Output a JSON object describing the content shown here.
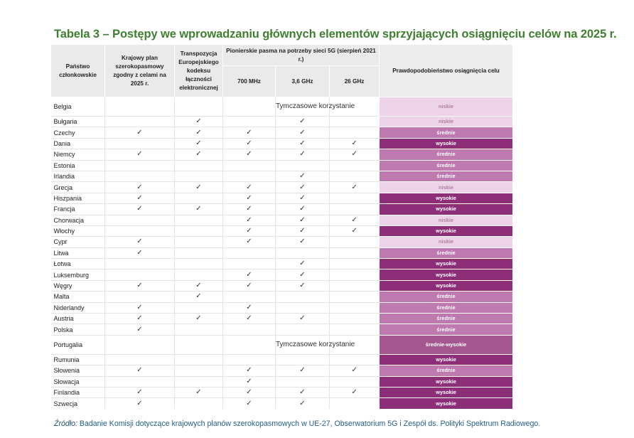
{
  "title": "Tabela 3 – Postępy we wprowadzaniu głównych elementów sprzyjających osiągnięciu celów na 2025 r.",
  "headers": {
    "state": "Państwo członkowskie",
    "plan": "Krajowy plan szerokopasmowy zgodny z celami na 2025 r.",
    "transposition": "Transpozycja Europejskiego kodeksu łączności elektronicznej",
    "bands_group": "Pionierskie pasma na potrzeby sieci 5G (sierpień 2021 r.)",
    "b700": "700 MHz",
    "b36": "3,6 GHz",
    "b26": "26 GHz",
    "probability": "Prawdopodobieństwo osiągnięcia celu"
  },
  "check_glyph": "✓",
  "level_colors": {
    "niskie": "#ecd3e7",
    "średnie": "#bf79b1",
    "wysokie": "#8c2f78",
    "średnie-wysokie": "#a4578f"
  },
  "rows": [
    {
      "name": "Belgia",
      "plan": "",
      "trans": "",
      "b700": "",
      "b36": "Tymczasowe korzystanie",
      "b26": "",
      "level": "niskie",
      "cls": "niskie",
      "tall": true
    },
    {
      "name": "Bułgaria",
      "plan": "",
      "trans": "✓",
      "b700": "",
      "b36": "✓",
      "b26": "",
      "level": "niskie",
      "cls": "niskie"
    },
    {
      "name": "Czechy",
      "plan": "✓",
      "trans": "✓",
      "b700": "✓",
      "b36": "✓",
      "b26": "",
      "level": "średnie",
      "cls": "srednie"
    },
    {
      "name": "Dania",
      "plan": "",
      "trans": "✓",
      "b700": "✓",
      "b36": "✓",
      "b26": "✓",
      "level": "wysokie",
      "cls": "wysokie"
    },
    {
      "name": "Niemcy",
      "plan": "✓",
      "trans": "✓",
      "b700": "✓",
      "b36": "✓",
      "b26": "✓",
      "level": "średnie",
      "cls": "srednie"
    },
    {
      "name": "Estonia",
      "plan": "",
      "trans": "",
      "b700": "",
      "b36": "",
      "b26": "",
      "level": "średnie",
      "cls": "srednie"
    },
    {
      "name": "Irlandia",
      "plan": "",
      "trans": "",
      "b700": "",
      "b36": "✓",
      "b26": "",
      "level": "średnie",
      "cls": "srednie"
    },
    {
      "name": "Grecja",
      "plan": "✓",
      "trans": "✓",
      "b700": "✓",
      "b36": "✓",
      "b26": "✓",
      "level": "niskie",
      "cls": "niskie"
    },
    {
      "name": "Hiszpania",
      "plan": "✓",
      "trans": "",
      "b700": "✓",
      "b36": "✓",
      "b26": "",
      "level": "wysokie",
      "cls": "wysokie"
    },
    {
      "name": "Francja",
      "plan": "✓",
      "trans": "✓",
      "b700": "✓",
      "b36": "✓",
      "b26": "",
      "level": "wysokie",
      "cls": "wysokie"
    },
    {
      "name": "Chorwacja",
      "plan": "",
      "trans": "",
      "b700": "✓",
      "b36": "✓",
      "b26": "✓",
      "level": "niskie",
      "cls": "niskie"
    },
    {
      "name": "Włochy",
      "plan": "",
      "trans": "",
      "b700": "✓",
      "b36": "✓",
      "b26": "✓",
      "level": "wysokie",
      "cls": "wysokie"
    },
    {
      "name": "Cypr",
      "plan": "✓",
      "trans": "",
      "b700": "✓",
      "b36": "✓",
      "b26": "",
      "level": "niskie",
      "cls": "niskie"
    },
    {
      "name": "Litwa",
      "plan": "✓",
      "trans": "",
      "b700": "",
      "b36": "",
      "b26": "",
      "level": "średnie",
      "cls": "srednie"
    },
    {
      "name": "Łotwa",
      "plan": "",
      "trans": "",
      "b700": "",
      "b36": "✓",
      "b26": "",
      "level": "wysokie",
      "cls": "wysokie"
    },
    {
      "name": "Luksemburg",
      "plan": "",
      "trans": "",
      "b700": "✓",
      "b36": "✓",
      "b26": "",
      "level": "wysokie",
      "cls": "wysokie"
    },
    {
      "name": "Węgry",
      "plan": "✓",
      "trans": "✓",
      "b700": "✓",
      "b36": "✓",
      "b26": "",
      "level": "wysokie",
      "cls": "wysokie"
    },
    {
      "name": "Malta",
      "plan": "",
      "trans": "✓",
      "b700": "",
      "b36": "",
      "b26": "",
      "level": "średnie",
      "cls": "srednie"
    },
    {
      "name": "Niderlandy",
      "plan": "✓",
      "trans": "",
      "b700": "✓",
      "b36": "",
      "b26": "",
      "level": "średnie",
      "cls": "srednie"
    },
    {
      "name": "Austria",
      "plan": "✓",
      "trans": "✓",
      "b700": "✓",
      "b36": "✓",
      "b26": "",
      "level": "średnie",
      "cls": "srednie"
    },
    {
      "name": "Polska",
      "plan": "✓",
      "trans": "",
      "b700": "",
      "b36": "",
      "b26": "",
      "level": "średnie",
      "cls": "srednie"
    },
    {
      "name": "Portugalia",
      "plan": "",
      "trans": "",
      "b700": "",
      "b36": "Tymczasowe korzystanie",
      "b26": "",
      "level": "średnie-wysokie",
      "cls": "sredniewysokie",
      "tall": true
    },
    {
      "name": "Rumunia",
      "plan": "",
      "trans": "",
      "b700": "",
      "b36": "",
      "b26": "",
      "level": "wysokie",
      "cls": "wysokie"
    },
    {
      "name": "Słowenia",
      "plan": "✓",
      "trans": "",
      "b700": "✓",
      "b36": "✓",
      "b26": "✓",
      "level": "średnie",
      "cls": "srednie"
    },
    {
      "name": "Słowacja",
      "plan": "",
      "trans": "",
      "b700": "✓",
      "b36": "",
      "b26": "",
      "level": "wysokie",
      "cls": "wysokie"
    },
    {
      "name": "Finlandia",
      "plan": "✓",
      "trans": "✓",
      "b700": "✓",
      "b36": "✓",
      "b26": "✓",
      "level": "wysokie",
      "cls": "wysokie"
    },
    {
      "name": "Szwecja",
      "plan": "✓",
      "trans": "",
      "b700": "✓",
      "b36": "✓",
      "b26": "",
      "level": "wysokie",
      "cls": "wysokie"
    }
  ],
  "source": {
    "label": "Źródło:",
    "text": " Badanie Komisji dotyczące krajowych planów szerokopasmowych w UE-27, Obserwatorium 5G i Zespół ds. Polityki Spektrum Radiowego."
  }
}
